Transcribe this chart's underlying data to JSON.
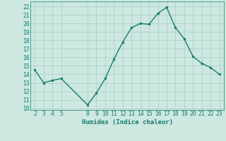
{
  "x": [
    2,
    3,
    4,
    5,
    8,
    9,
    10,
    11,
    12,
    13,
    14,
    15,
    16,
    17,
    18,
    19,
    20,
    21,
    22,
    23
  ],
  "y": [
    14.5,
    13.0,
    13.3,
    13.5,
    10.4,
    11.8,
    13.5,
    15.8,
    17.8,
    19.5,
    20.0,
    19.9,
    21.2,
    21.9,
    19.5,
    18.2,
    16.1,
    15.3,
    14.8,
    14.0
  ],
  "line_color": "#1a7a6e",
  "marker_color": "#1a7a6e",
  "bg_color": "#cce8e0",
  "grid_color": "#aaccc4",
  "xlabel": "Humidex (Indice chaleur)",
  "xticks": [
    2,
    3,
    4,
    5,
    8,
    9,
    10,
    11,
    12,
    13,
    14,
    15,
    16,
    17,
    18,
    19,
    20,
    21,
    22,
    23
  ],
  "yticks": [
    10,
    11,
    12,
    13,
    14,
    15,
    16,
    17,
    18,
    19,
    20,
    21,
    22
  ],
  "ylim": [
    9.8,
    22.6
  ],
  "xlim": [
    1.5,
    23.5
  ],
  "font_size": 5.8,
  "xlabel_fontsize": 6.5
}
